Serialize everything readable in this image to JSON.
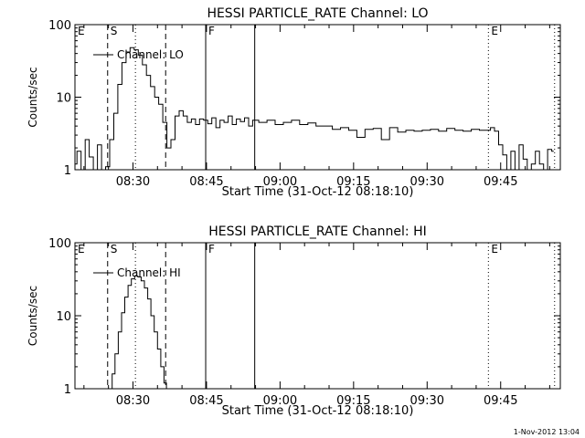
{
  "footer": {
    "date_stamp": "1-Nov-2012 13:04"
  },
  "chart_data": [
    {
      "type": "line",
      "title": "HESSI PARTICLE_RATE Channel: LO",
      "xlabel": "Start Time (31-Oct-12 08:18:10)",
      "ylabel": "Counts/sec",
      "yscale": "log",
      "ylim": [
        1,
        100
      ],
      "xlim": [
        "08:18:10",
        "09:57:10"
      ],
      "x_ticks": [
        "08:30",
        "08:45",
        "09:00",
        "09:15",
        "09:30",
        "09:45"
      ],
      "y_ticks": [
        "1",
        "10",
        "100"
      ],
      "legend": "Channel: LO",
      "legend_position": "top-left",
      "markers": [
        {
          "label": "E",
          "time": "08:18:10",
          "style": "none"
        },
        {
          "label": "S",
          "time": "08:24:50",
          "style": "dashed"
        },
        {
          "label": "",
          "time": "08:30:30",
          "style": "dotted"
        },
        {
          "label": "",
          "time": "08:36:40",
          "style": "dashed"
        },
        {
          "label": "F",
          "time": "08:44:50",
          "style": "solid"
        },
        {
          "label": "",
          "time": "08:54:50",
          "style": "solid"
        },
        {
          "label": "E",
          "time": "09:42:30",
          "style": "dotted"
        },
        {
          "label": "",
          "time": "09:56:00",
          "style": "dotted"
        }
      ],
      "series": [
        {
          "name": "Channel: LO",
          "x": [
            "08:18:10",
            "08:19:00",
            "08:19:50",
            "08:20:40",
            "08:21:30",
            "08:22:20",
            "08:23:10",
            "08:24:00",
            "08:24:50",
            "08:25:40",
            "08:26:30",
            "08:27:20",
            "08:28:10",
            "08:29:00",
            "08:29:50",
            "08:30:40",
            "08:31:30",
            "08:32:20",
            "08:33:10",
            "08:34:00",
            "08:34:50",
            "08:35:40",
            "08:36:30",
            "08:37:20",
            "08:38:10",
            "08:39:00",
            "08:39:50",
            "08:40:40",
            "08:41:30",
            "08:42:20",
            "08:43:10",
            "08:44:00",
            "08:44:50",
            "08:45:40",
            "08:46:30",
            "08:47:20",
            "08:48:10",
            "08:49:00",
            "08:49:50",
            "08:50:40",
            "08:51:30",
            "08:52:20",
            "08:53:10",
            "08:54:00",
            "08:54:50",
            "08:56:30",
            "08:58:10",
            "08:59:50",
            "09:01:30",
            "09:03:10",
            "09:04:50",
            "09:06:30",
            "09:08:10",
            "09:09:50",
            "09:11:30",
            "09:13:10",
            "09:14:50",
            "09:16:30",
            "09:18:10",
            "09:19:50",
            "09:21:30",
            "09:23:10",
            "09:24:50",
            "09:26:30",
            "09:28:10",
            "09:29:50",
            "09:31:30",
            "09:33:10",
            "09:34:50",
            "09:36:30",
            "09:38:10",
            "09:39:50",
            "09:41:30",
            "09:42:30",
            "09:43:20",
            "09:44:10",
            "09:45:00",
            "09:45:50",
            "09:46:40",
            "09:47:30",
            "09:48:20",
            "09:49:10",
            "09:50:00",
            "09:50:50",
            "09:51:40",
            "09:52:30",
            "09:53:20",
            "09:54:10",
            "09:55:00",
            "09:55:50"
          ],
          "y": [
            1.2,
            1.8,
            1,
            2.6,
            1.5,
            1,
            2.2,
            1,
            1.1,
            2.6,
            6,
            15,
            30,
            42,
            48,
            45,
            38,
            28,
            20,
            14,
            10,
            8,
            4.5,
            2,
            2.6,
            5.5,
            6.5,
            5.5,
            4.5,
            5,
            4.2,
            5,
            4.8,
            4.3,
            5.2,
            3.8,
            4.8,
            4.5,
            5.5,
            4.2,
            5,
            4.6,
            5.2,
            4,
            4.8,
            4.5,
            4.8,
            4.2,
            4.5,
            4.8,
            4.2,
            4.4,
            4,
            4,
            3.6,
            3.8,
            3.5,
            2.8,
            3.6,
            3.7,
            2.6,
            3.8,
            3.3,
            3.5,
            3.4,
            3.5,
            3.6,
            3.4,
            3.7,
            3.5,
            3.4,
            3.6,
            3.5,
            3.5,
            3.8,
            3.4,
            2.2,
            1.6,
            1,
            1.8,
            1,
            2.2,
            1.4,
            1,
            1.2,
            1.8,
            1.2,
            1,
            1.9,
            1.8
          ]
        }
      ]
    },
    {
      "type": "line",
      "title": "HESSI PARTICLE_RATE Channel: HI",
      "xlabel": "Start Time (31-Oct-12 08:18:10)",
      "ylabel": "Counts/sec",
      "yscale": "log",
      "ylim": [
        1,
        100
      ],
      "xlim": [
        "08:18:10",
        "09:57:10"
      ],
      "x_ticks": [
        "08:30",
        "08:45",
        "09:00",
        "09:15",
        "09:30",
        "09:45"
      ],
      "y_ticks": [
        "1",
        "10",
        "100"
      ],
      "legend": "Channel: HI",
      "legend_position": "top-left",
      "markers": [
        {
          "label": "E",
          "time": "08:18:10",
          "style": "none"
        },
        {
          "label": "S",
          "time": "08:24:50",
          "style": "dashed"
        },
        {
          "label": "",
          "time": "08:30:30",
          "style": "dotted"
        },
        {
          "label": "",
          "time": "08:36:40",
          "style": "dashed"
        },
        {
          "label": "F",
          "time": "08:44:50",
          "style": "solid"
        },
        {
          "label": "",
          "time": "08:54:50",
          "style": "solid"
        },
        {
          "label": "E",
          "time": "09:42:30",
          "style": "dotted"
        },
        {
          "label": "",
          "time": "09:56:00",
          "style": "dotted"
        }
      ],
      "series": [
        {
          "name": "Channel: HI",
          "x": [
            "08:25:30",
            "08:26:00",
            "08:26:40",
            "08:27:20",
            "08:28:00",
            "08:28:40",
            "08:29:20",
            "08:30:00",
            "08:30:40",
            "08:31:20",
            "08:32:00",
            "08:32:40",
            "08:33:20",
            "08:34:00",
            "08:34:40",
            "08:35:20",
            "08:36:00",
            "08:36:40",
            "08:37:00"
          ],
          "y": [
            1,
            1.6,
            3,
            6,
            11,
            18,
            26,
            32,
            35,
            34,
            30,
            24,
            17,
            10,
            6,
            3.5,
            2,
            1.2,
            1
          ]
        }
      ]
    }
  ]
}
